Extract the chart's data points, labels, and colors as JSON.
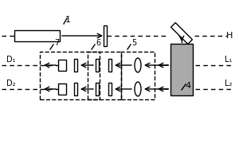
{
  "bg_color": "#ffffff",
  "line_color": "#000000",
  "gray_color": "#aaaaaa",
  "dashed_box_color": "#000000",
  "label_1": "1",
  "label_4": "4",
  "label_5": "5",
  "label_6": "6",
  "label_7": "7",
  "label_H": "H",
  "label_D1": "D₁",
  "label_D2": "D₂",
  "label_L1": "L₁",
  "label_L2": "L₂"
}
